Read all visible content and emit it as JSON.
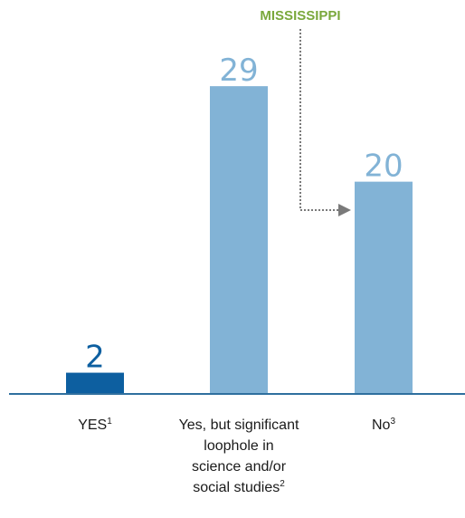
{
  "chart_data": {
    "type": "bar",
    "categories": [
      {
        "lines": [
          "YES"
        ],
        "sup": "1"
      },
      {
        "lines": [
          "Yes, but significant",
          "loophole in",
          "science and/or",
          "social studies"
        ],
        "sup": "2"
      },
      {
        "lines": [
          "No"
        ],
        "sup": "3"
      }
    ],
    "values": [
      2,
      29,
      20
    ],
    "value_labels": [
      "2",
      "29",
      "20"
    ],
    "ylim": [
      0,
      32
    ],
    "grid": false,
    "legend": "none",
    "annotation": {
      "label": "MISSISSIPPI",
      "target_category_index": 2
    }
  },
  "colors": {
    "bar_highlight": "#0d5fa0",
    "bar_default": "#82b3d6",
    "label_highlight": "#0d5fa0",
    "label_default": "#82b3d6",
    "baseline": "#2f6f9e",
    "annotation_label": "#7aa83c",
    "annotation_arrow": "#7a7a7a"
  }
}
